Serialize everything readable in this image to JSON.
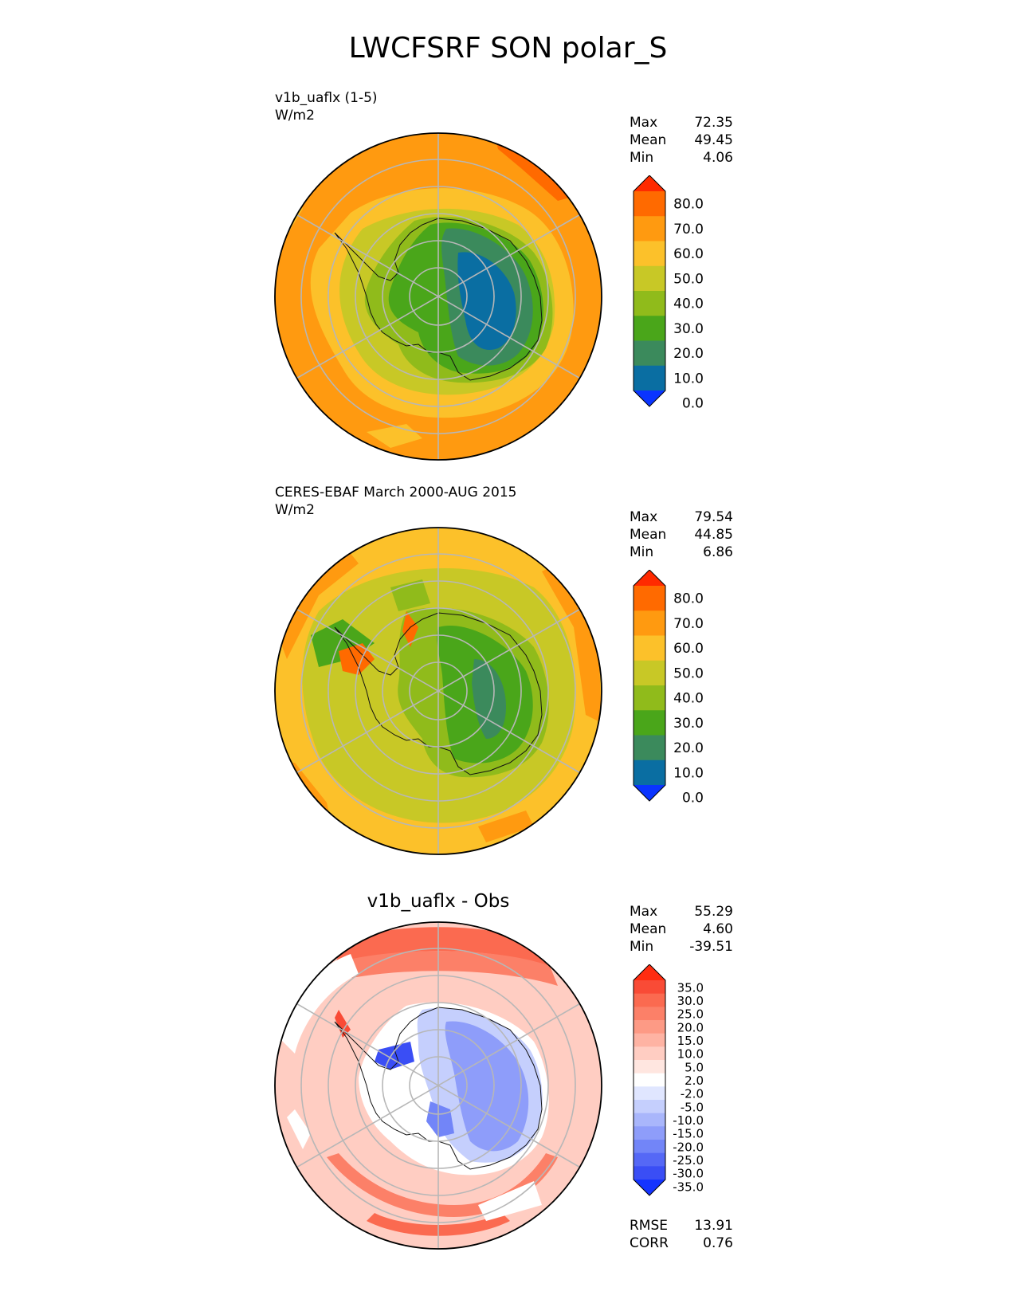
{
  "title": "LWCFSRF SON polar_S",
  "panels": [
    {
      "label_line1": "v1b_uaflx (1-5)",
      "label_line2": "W/m2",
      "stats": {
        "max_label": "Max",
        "max": "72.35",
        "mean_label": "Mean",
        "mean": "49.45",
        "min_label": "Min",
        "min": "4.06"
      },
      "colorbar": {
        "ticks": [
          "80.0",
          "70.0",
          "60.0",
          "50.0",
          "40.0",
          "30.0",
          "20.0",
          "10.0",
          "0.0"
        ],
        "colors": [
          "#ff2a00",
          "#ff6a00",
          "#ff9a10",
          "#fcc12a",
          "#c8c826",
          "#90bb1b",
          "#4aa61a",
          "#3b8a5c",
          "#0a6ea2",
          "#0a34ff"
        ]
      }
    },
    {
      "label_line1": "CERES-EBAF March 2000-AUG 2015",
      "label_line2": "W/m2",
      "stats": {
        "max_label": "Max",
        "max": "79.54",
        "mean_label": "Mean",
        "mean": "44.85",
        "min_label": "Min",
        "min": "6.86"
      },
      "colorbar": {
        "ticks": [
          "80.0",
          "70.0",
          "60.0",
          "50.0",
          "40.0",
          "30.0",
          "20.0",
          "10.0",
          "0.0"
        ],
        "colors": [
          "#ff2a00",
          "#ff6a00",
          "#ff9a10",
          "#fcc12a",
          "#c8c826",
          "#90bb1b",
          "#4aa61a",
          "#3b8a5c",
          "#0a6ea2",
          "#0a34ff"
        ]
      }
    },
    {
      "center_title": "v1b_uaflx - Obs",
      "stats": {
        "max_label": "Max",
        "max": "55.29",
        "mean_label": "Mean",
        "mean": "4.60",
        "min_label": "Min",
        "min": "-39.51"
      },
      "colorbar": {
        "ticks": [
          "35.0",
          "30.0",
          "25.0",
          "20.0",
          "15.0",
          "10.0",
          "5.0",
          "2.0",
          "-2.0",
          "-5.0",
          "-10.0",
          "-15.0",
          "-20.0",
          "-25.0",
          "-30.0",
          "-35.0"
        ],
        "colors": [
          "#ff2c10",
          "#f94b36",
          "#fb6a50",
          "#fc8068",
          "#fd9a85",
          "#feb3a3",
          "#ffcdc2",
          "#ffe6e0",
          "#ffffff",
          "#e0e6ff",
          "#c5cffd",
          "#a9b6fb",
          "#8e9dfa",
          "#7285f8",
          "#5568f6",
          "#3a4ef5",
          "#1434ff"
        ]
      },
      "rmse_label": "RMSE",
      "rmse": "13.91",
      "corr_label": "CORR",
      "corr": "0.76"
    }
  ]
}
